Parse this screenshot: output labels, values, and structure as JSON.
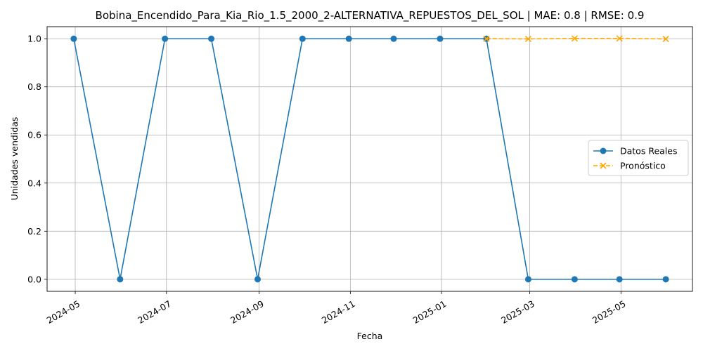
{
  "chart_data": {
    "type": "line",
    "title": "Bobina_Encendido_Para_Kia_Rio_1.5_2000_2-ALTERNATIVA_REPUESTOS_DEL_SOL | MAE: 0.8 | RMSE: 0.9",
    "xlabel": "Fecha",
    "ylabel": "Unidades vendidas",
    "ylim": [
      -0.05,
      1.05
    ],
    "yticks": [
      0.0,
      0.2,
      0.4,
      0.6,
      0.8,
      1.0
    ],
    "ytick_labels": [
      "0.0",
      "0.2",
      "0.4",
      "0.6",
      "0.8",
      "1.0"
    ],
    "xticks": [
      "2024-05",
      "2024-07",
      "2024-09",
      "2024-11",
      "2025-01",
      "2025-03",
      "2025-05"
    ],
    "grid": true,
    "legend_position": "center-right",
    "series": [
      {
        "name": "Datos Reales",
        "color": "#1f77b4",
        "style": "solid",
        "marker": "circle",
        "points": [
          {
            "x": "2024-04-30",
            "y": 1
          },
          {
            "x": "2024-05-31",
            "y": 0
          },
          {
            "x": "2024-06-30",
            "y": 1
          },
          {
            "x": "2024-07-31",
            "y": 1
          },
          {
            "x": "2024-08-31",
            "y": 0
          },
          {
            "x": "2024-09-30",
            "y": 1
          },
          {
            "x": "2024-10-31",
            "y": 1
          },
          {
            "x": "2024-11-30",
            "y": 1
          },
          {
            "x": "2024-12-31",
            "y": 1
          },
          {
            "x": "2025-01-31",
            "y": 1
          },
          {
            "x": "2025-02-28",
            "y": 0
          },
          {
            "x": "2025-03-31",
            "y": 0
          },
          {
            "x": "2025-04-30",
            "y": 0
          },
          {
            "x": "2025-05-31",
            "y": 0
          }
        ]
      },
      {
        "name": "Pronóstico",
        "color": "#ffa500",
        "style": "dashed",
        "marker": "x",
        "points": [
          {
            "x": "2025-01-31",
            "y": 1.0
          },
          {
            "x": "2025-02-28",
            "y": 0.999
          },
          {
            "x": "2025-03-31",
            "y": 1.001
          },
          {
            "x": "2025-04-30",
            "y": 1.001
          },
          {
            "x": "2025-05-31",
            "y": 0.999
          }
        ]
      }
    ]
  }
}
